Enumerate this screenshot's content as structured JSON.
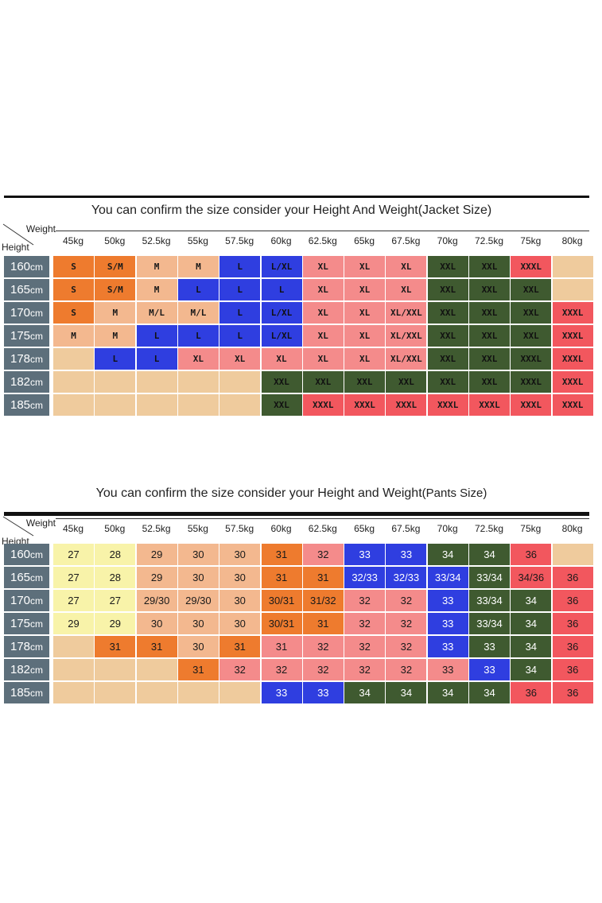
{
  "colors": {
    "tan": "#efcb9d",
    "orange": "#ee7b2e",
    "blue": "#2f3ee0",
    "pink": "#f48b8b",
    "green": "#3f5a30",
    "red": "#f2575e",
    "yellow": "#f8f3a9",
    "peach": "#f3b88f",
    "header": "#5d6f7b"
  },
  "jacket": {
    "title": "You can confirm the size consider  your Height And Weight(Jacket Size)",
    "weight_label": "Weight",
    "height_label": "Height",
    "weights": [
      "45kg",
      "50kg",
      "52.5kg",
      "55kg",
      "57.5kg",
      "60kg",
      "62.5kg",
      "65kg",
      "67.5kg",
      "70kg",
      "72.5kg",
      "75kg",
      "80kg"
    ],
    "rows": [
      {
        "height": "160",
        "unit": "cm",
        "cells": [
          [
            "S",
            "orange"
          ],
          [
            "S/M",
            "orange"
          ],
          [
            "M",
            "peach"
          ],
          [
            "M",
            "peach"
          ],
          [
            "L",
            "blue"
          ],
          [
            "L/XL",
            "blue"
          ],
          [
            "XL",
            "pink"
          ],
          [
            "XL",
            "pink"
          ],
          [
            "XL",
            "pink"
          ],
          [
            "XXL",
            "green"
          ],
          [
            "XXL",
            "green"
          ],
          [
            "XXXL",
            "red"
          ],
          [
            "",
            "tan"
          ]
        ]
      },
      {
        "height": "165",
        "unit": "cm",
        "cells": [
          [
            "S",
            "orange"
          ],
          [
            "S/M",
            "orange"
          ],
          [
            "M",
            "peach"
          ],
          [
            "L",
            "blue"
          ],
          [
            "L",
            "blue"
          ],
          [
            "L",
            "blue"
          ],
          [
            "XL",
            "pink"
          ],
          [
            "XL",
            "pink"
          ],
          [
            "XL",
            "pink"
          ],
          [
            "XXL",
            "green"
          ],
          [
            "XXL",
            "green"
          ],
          [
            "XXL",
            "green"
          ],
          [
            "",
            "tan"
          ]
        ]
      },
      {
        "height": "170",
        "unit": "cm",
        "cells": [
          [
            "S",
            "orange"
          ],
          [
            "M",
            "peach"
          ],
          [
            "M/L",
            "peach"
          ],
          [
            "M/L",
            "peach"
          ],
          [
            "L",
            "blue"
          ],
          [
            "L/XL",
            "blue"
          ],
          [
            "XL",
            "pink"
          ],
          [
            "XL",
            "pink"
          ],
          [
            "XL/XXL",
            "pink"
          ],
          [
            "XXL",
            "green"
          ],
          [
            "XXL",
            "green"
          ],
          [
            "XXL",
            "green"
          ],
          [
            "XXXL",
            "red"
          ]
        ]
      },
      {
        "height": "175",
        "unit": "cm",
        "cells": [
          [
            "M",
            "peach"
          ],
          [
            "M",
            "peach"
          ],
          [
            "L",
            "blue"
          ],
          [
            "L",
            "blue"
          ],
          [
            "L",
            "blue"
          ],
          [
            "L/XL",
            "blue"
          ],
          [
            "XL",
            "pink"
          ],
          [
            "XL",
            "pink"
          ],
          [
            "XL/XXL",
            "pink"
          ],
          [
            "XXL",
            "green"
          ],
          [
            "XXL",
            "green"
          ],
          [
            "XXL",
            "green"
          ],
          [
            "XXXL",
            "red"
          ]
        ]
      },
      {
        "height": "178",
        "unit": "cm",
        "cells": [
          [
            "",
            "tan"
          ],
          [
            "L",
            "blue"
          ],
          [
            "L",
            "blue"
          ],
          [
            "XL",
            "pink"
          ],
          [
            "XL",
            "pink"
          ],
          [
            "XL",
            "pink"
          ],
          [
            "XL",
            "pink"
          ],
          [
            "XL",
            "pink"
          ],
          [
            "XL/XXL",
            "pink"
          ],
          [
            "XXL",
            "green"
          ],
          [
            "XXL",
            "green"
          ],
          [
            "XXXL",
            "green"
          ],
          [
            "XXXL",
            "red"
          ]
        ]
      },
      {
        "height": "182",
        "unit": "cm",
        "cells": [
          [
            "",
            "tan"
          ],
          [
            "",
            "tan"
          ],
          [
            "",
            "tan"
          ],
          [
            "",
            "tan"
          ],
          [
            "",
            "tan"
          ],
          [
            "XXL",
            "green"
          ],
          [
            "XXL",
            "green"
          ],
          [
            "XXL",
            "green"
          ],
          [
            "XXL",
            "green"
          ],
          [
            "XXL",
            "green"
          ],
          [
            "XXL",
            "green"
          ],
          [
            "XXXL",
            "green"
          ],
          [
            "XXXL",
            "red"
          ]
        ]
      },
      {
        "height": "185",
        "unit": "cm",
        "cells": [
          [
            "",
            "tan"
          ],
          [
            "",
            "tan"
          ],
          [
            "",
            "tan"
          ],
          [
            "",
            "tan"
          ],
          [
            "",
            "tan"
          ],
          [
            "XXL",
            "green"
          ],
          [
            "XXXL",
            "red"
          ],
          [
            "XXXL",
            "red"
          ],
          [
            "XXXL",
            "red"
          ],
          [
            "XXXL",
            "red"
          ],
          [
            "XXXL",
            "red"
          ],
          [
            "XXXL",
            "red"
          ],
          [
            "XXXL",
            "red"
          ]
        ]
      }
    ]
  },
  "pants": {
    "title": "You can confirm the size consider your Height and Weight",
    "title_note": "(Pants Size)",
    "weight_label": "Weight",
    "height_label": "Height",
    "weights": [
      "45kg",
      "50kg",
      "52.5kg",
      "55kg",
      "57.5kg",
      "60kg",
      "62.5kg",
      "65kg",
      "67.5kg",
      "70kg",
      "72.5kg",
      "75kg",
      "80kg"
    ],
    "rows": [
      {
        "height": "160",
        "unit": "cm",
        "cells": [
          [
            "27",
            "yellow"
          ],
          [
            "28",
            "yellow"
          ],
          [
            "29",
            "peach"
          ],
          [
            "30",
            "peach"
          ],
          [
            "30",
            "peach"
          ],
          [
            "31",
            "orange"
          ],
          [
            "32",
            "pink"
          ],
          [
            "33",
            "blue"
          ],
          [
            "33",
            "blue"
          ],
          [
            "34",
            "green"
          ],
          [
            "34",
            "green"
          ],
          [
            "36",
            "red"
          ],
          [
            "",
            "tan"
          ]
        ]
      },
      {
        "height": "165",
        "unit": "cm",
        "cells": [
          [
            "27",
            "yellow"
          ],
          [
            "28",
            "yellow"
          ],
          [
            "29",
            "peach"
          ],
          [
            "30",
            "peach"
          ],
          [
            "30",
            "peach"
          ],
          [
            "31",
            "orange"
          ],
          [
            "31",
            "orange"
          ],
          [
            "32/33",
            "blue"
          ],
          [
            "32/33",
            "blue"
          ],
          [
            "33/34",
            "blue"
          ],
          [
            "33/34",
            "green"
          ],
          [
            "34/36",
            "red"
          ],
          [
            "36",
            "red"
          ]
        ]
      },
      {
        "height": "170",
        "unit": "cm",
        "cells": [
          [
            "27",
            "yellow"
          ],
          [
            "27",
            "yellow"
          ],
          [
            "29/30",
            "peach"
          ],
          [
            "29/30",
            "peach"
          ],
          [
            "30",
            "peach"
          ],
          [
            "30/31",
            "orange"
          ],
          [
            "31/32",
            "orange"
          ],
          [
            "32",
            "pink"
          ],
          [
            "32",
            "pink"
          ],
          [
            "33",
            "blue"
          ],
          [
            "33/34",
            "green"
          ],
          [
            "34",
            "green"
          ],
          [
            "36",
            "red"
          ]
        ]
      },
      {
        "height": "175",
        "unit": "cm",
        "cells": [
          [
            "29",
            "yellow"
          ],
          [
            "29",
            "yellow"
          ],
          [
            "30",
            "peach"
          ],
          [
            "30",
            "peach"
          ],
          [
            "30",
            "peach"
          ],
          [
            "30/31",
            "orange"
          ],
          [
            "31",
            "orange"
          ],
          [
            "32",
            "pink"
          ],
          [
            "32",
            "pink"
          ],
          [
            "33",
            "blue"
          ],
          [
            "33/34",
            "green"
          ],
          [
            "34",
            "green"
          ],
          [
            "36",
            "red"
          ]
        ]
      },
      {
        "height": "178",
        "unit": "cm",
        "cells": [
          [
            "",
            "tan"
          ],
          [
            "31",
            "orange"
          ],
          [
            "31",
            "orange"
          ],
          [
            "30",
            "peach"
          ],
          [
            "31",
            "orange"
          ],
          [
            "31",
            "pink"
          ],
          [
            "32",
            "pink"
          ],
          [
            "32",
            "pink"
          ],
          [
            "32",
            "pink"
          ],
          [
            "33",
            "blue"
          ],
          [
            "33",
            "green"
          ],
          [
            "34",
            "green"
          ],
          [
            "36",
            "red"
          ]
        ]
      },
      {
        "height": "182",
        "unit": "cm",
        "cells": [
          [
            "",
            "tan"
          ],
          [
            "",
            "tan"
          ],
          [
            "",
            "tan"
          ],
          [
            "31",
            "orange"
          ],
          [
            "32",
            "pink"
          ],
          [
            "32",
            "pink"
          ],
          [
            "32",
            "pink"
          ],
          [
            "32",
            "pink"
          ],
          [
            "32",
            "pink"
          ],
          [
            "33",
            "pink"
          ],
          [
            "33",
            "blue"
          ],
          [
            "34",
            "green"
          ],
          [
            "36",
            "red"
          ]
        ]
      },
      {
        "height": "185",
        "unit": "cm",
        "cells": [
          [
            "",
            "tan"
          ],
          [
            "",
            "tan"
          ],
          [
            "",
            "tan"
          ],
          [
            "",
            "tan"
          ],
          [
            "",
            "tan"
          ],
          [
            "33",
            "blue"
          ],
          [
            "33",
            "blue"
          ],
          [
            "34",
            "green"
          ],
          [
            "34",
            "green"
          ],
          [
            "34",
            "green"
          ],
          [
            "34",
            "green"
          ],
          [
            "36",
            "red"
          ],
          [
            "36",
            "red"
          ]
        ]
      }
    ]
  }
}
